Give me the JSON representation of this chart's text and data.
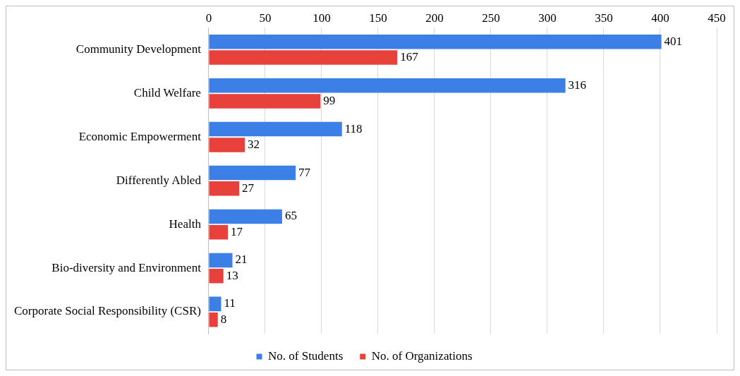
{
  "chart_data": {
    "type": "bar",
    "orientation": "horizontal",
    "categories": [
      "Community Development",
      "Child Welfare",
      "Economic Empowerment",
      "Differently Abled",
      "Health",
      "Bio-diversity and Environment",
      "Corporate Social Responsibility (CSR)"
    ],
    "series": [
      {
        "name": "No. of Students",
        "color": "#3c7fe6",
        "values": [
          401,
          316,
          118,
          77,
          65,
          21,
          11
        ]
      },
      {
        "name": "No. of Organizations",
        "color": "#e8403a",
        "values": [
          167,
          99,
          32,
          27,
          17,
          13,
          8
        ]
      }
    ],
    "xlim": [
      0,
      450
    ],
    "xticks": [
      0,
      50,
      100,
      150,
      200,
      250,
      300,
      350,
      400,
      450
    ],
    "grid": "x",
    "legend": "bottom",
    "data_labels": true
  }
}
